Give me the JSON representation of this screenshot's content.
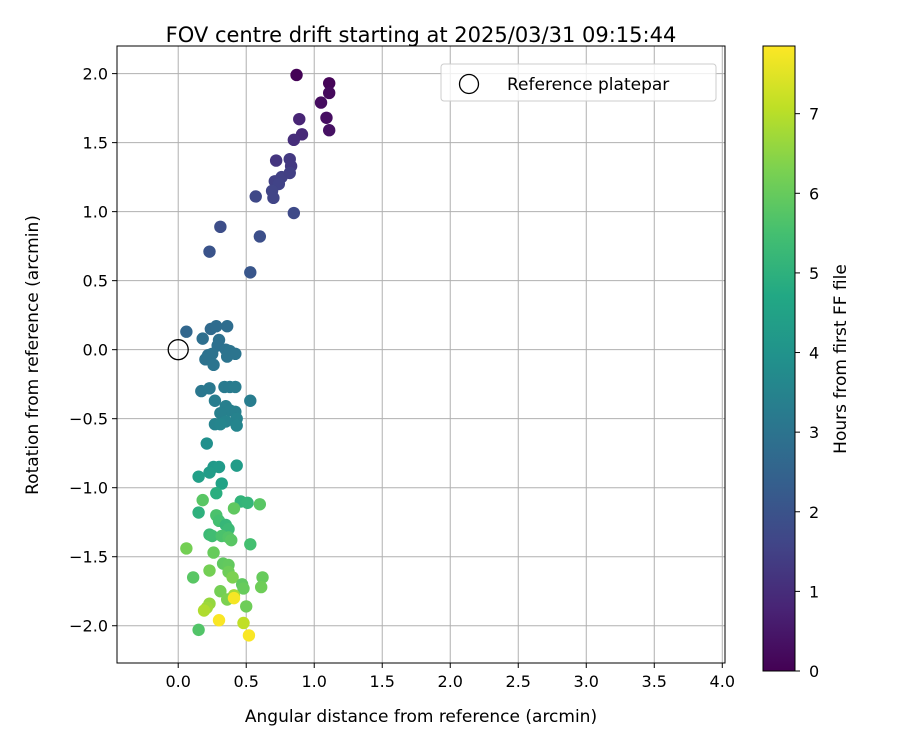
{
  "chart_data": {
    "type": "scatter",
    "title": "FOV centre drift starting at 2025/03/31 09:15:44",
    "xlabel": "Angular distance from reference (arcmin)",
    "ylabel": "Rotation from reference (arcmin)",
    "xlim": [
      -0.45,
      4.02
    ],
    "ylim": [
      -2.27,
      2.2
    ],
    "x_ticks": [
      0.0,
      0.5,
      1.0,
      1.5,
      2.0,
      2.5,
      3.0,
      3.5,
      4.0
    ],
    "x_tick_labels": [
      "0.0",
      "0.5",
      "1.0",
      "1.5",
      "2.0",
      "2.5",
      "3.0",
      "3.5",
      "4.0"
    ],
    "y_ticks": [
      -2.0,
      -1.5,
      -1.0,
      -0.5,
      0.0,
      0.5,
      1.0,
      1.5,
      2.0
    ],
    "y_tick_labels": [
      "−2.0",
      "−1.5",
      "−1.0",
      "−0.5",
      "0.0",
      "0.5",
      "1.0",
      "1.5",
      "2.0"
    ],
    "grid": true,
    "legend": {
      "position": "top-right",
      "entries": [
        "Reference platepar"
      ]
    },
    "reference_point": {
      "name": "Reference platepar",
      "x": 0.0,
      "y": 0.0
    },
    "colorbar": {
      "label": "Hours from first FF file",
      "colormap": "viridis",
      "range": [
        0,
        7.85
      ],
      "ticks": [
        0,
        1,
        2,
        3,
        4,
        5,
        6,
        7
      ],
      "tick_labels": [
        "0",
        "1",
        "2",
        "3",
        "4",
        "5",
        "6",
        "7"
      ]
    },
    "series": [
      {
        "points": [
          {
            "x": 0.87,
            "y": 1.99,
            "c": 0.05
          },
          {
            "x": 1.11,
            "y": 1.93,
            "c": 0.1
          },
          {
            "x": 1.11,
            "y": 1.86,
            "c": 0.2
          },
          {
            "x": 1.05,
            "y": 1.79,
            "c": 0.25
          },
          {
            "x": 1.09,
            "y": 1.68,
            "c": 0.3
          },
          {
            "x": 1.11,
            "y": 1.59,
            "c": 0.35
          },
          {
            "x": 0.89,
            "y": 1.67,
            "c": 0.8
          },
          {
            "x": 0.91,
            "y": 1.56,
            "c": 0.9
          },
          {
            "x": 0.85,
            "y": 1.52,
            "c": 1.0
          },
          {
            "x": 0.72,
            "y": 1.37,
            "c": 1.2
          },
          {
            "x": 0.82,
            "y": 1.38,
            "c": 1.3
          },
          {
            "x": 0.83,
            "y": 1.33,
            "c": 1.3
          },
          {
            "x": 0.76,
            "y": 1.25,
            "c": 1.5
          },
          {
            "x": 0.71,
            "y": 1.22,
            "c": 1.5
          },
          {
            "x": 0.74,
            "y": 1.2,
            "c": 1.55
          },
          {
            "x": 0.82,
            "y": 1.28,
            "c": 1.45
          },
          {
            "x": 0.69,
            "y": 1.15,
            "c": 1.6
          },
          {
            "x": 0.7,
            "y": 1.1,
            "c": 1.6
          },
          {
            "x": 0.57,
            "y": 1.11,
            "c": 1.7
          },
          {
            "x": 0.85,
            "y": 0.99,
            "c": 1.75
          },
          {
            "x": 0.31,
            "y": 0.89,
            "c": 1.85
          },
          {
            "x": 0.6,
            "y": 0.82,
            "c": 1.9
          },
          {
            "x": 0.23,
            "y": 0.71,
            "c": 2.0
          },
          {
            "x": 0.53,
            "y": 0.56,
            "c": 2.1
          },
          {
            "x": 0.06,
            "y": 0.13,
            "c": 2.6
          },
          {
            "x": 0.24,
            "y": 0.15,
            "c": 2.7
          },
          {
            "x": 0.28,
            "y": 0.17,
            "c": 2.75
          },
          {
            "x": 0.36,
            "y": 0.17,
            "c": 2.8
          },
          {
            "x": 0.18,
            "y": 0.08,
            "c": 2.85
          },
          {
            "x": 0.3,
            "y": 0.07,
            "c": 2.9
          },
          {
            "x": 0.29,
            "y": 0.03,
            "c": 2.9
          },
          {
            "x": 0.35,
            "y": 0.0,
            "c": 2.95
          },
          {
            "x": 0.38,
            "y": -0.01,
            "c": 3.0
          },
          {
            "x": 0.42,
            "y": -0.03,
            "c": 3.0
          },
          {
            "x": 0.22,
            "y": -0.04,
            "c": 2.9
          },
          {
            "x": 0.25,
            "y": -0.03,
            "c": 2.95
          },
          {
            "x": 0.36,
            "y": -0.05,
            "c": 3.0
          },
          {
            "x": 0.2,
            "y": -0.07,
            "c": 2.95
          },
          {
            "x": 0.26,
            "y": -0.11,
            "c": 3.0
          },
          {
            "x": 0.17,
            "y": -0.3,
            "c": 3.1
          },
          {
            "x": 0.23,
            "y": -0.28,
            "c": 3.15
          },
          {
            "x": 0.34,
            "y": -0.27,
            "c": 3.2
          },
          {
            "x": 0.38,
            "y": -0.27,
            "c": 3.2
          },
          {
            "x": 0.42,
            "y": -0.27,
            "c": 3.25
          },
          {
            "x": 0.27,
            "y": -0.37,
            "c": 3.3
          },
          {
            "x": 0.53,
            "y": -0.37,
            "c": 3.3
          },
          {
            "x": 0.35,
            "y": -0.41,
            "c": 3.35
          },
          {
            "x": 0.38,
            "y": -0.44,
            "c": 3.4
          },
          {
            "x": 0.42,
            "y": -0.45,
            "c": 3.4
          },
          {
            "x": 0.31,
            "y": -0.46,
            "c": 3.4
          },
          {
            "x": 0.43,
            "y": -0.5,
            "c": 3.45
          },
          {
            "x": 0.35,
            "y": -0.52,
            "c": 3.5
          },
          {
            "x": 0.27,
            "y": -0.54,
            "c": 3.5
          },
          {
            "x": 0.31,
            "y": -0.54,
            "c": 3.55
          },
          {
            "x": 0.43,
            "y": -0.55,
            "c": 3.55
          },
          {
            "x": 0.21,
            "y": -0.68,
            "c": 3.9
          },
          {
            "x": 0.26,
            "y": -0.85,
            "c": 4.2
          },
          {
            "x": 0.3,
            "y": -0.85,
            "c": 4.25
          },
          {
            "x": 0.43,
            "y": -0.84,
            "c": 4.3
          },
          {
            "x": 0.23,
            "y": -0.89,
            "c": 4.3
          },
          {
            "x": 0.15,
            "y": -0.92,
            "c": 4.4
          },
          {
            "x": 0.32,
            "y": -0.97,
            "c": 4.5
          },
          {
            "x": 0.28,
            "y": -1.04,
            "c": 4.9
          },
          {
            "x": 0.18,
            "y": -1.09,
            "c": 5.8
          },
          {
            "x": 0.46,
            "y": -1.1,
            "c": 5.1
          },
          {
            "x": 0.51,
            "y": -1.11,
            "c": 5.15
          },
          {
            "x": 0.6,
            "y": -1.12,
            "c": 5.8
          },
          {
            "x": 0.41,
            "y": -1.15,
            "c": 5.9
          },
          {
            "x": 0.15,
            "y": -1.18,
            "c": 5.0
          },
          {
            "x": 0.28,
            "y": -1.2,
            "c": 5.6
          },
          {
            "x": 0.3,
            "y": -1.24,
            "c": 5.5
          },
          {
            "x": 0.35,
            "y": -1.27,
            "c": 5.2
          },
          {
            "x": 0.37,
            "y": -1.3,
            "c": 5.3
          },
          {
            "x": 0.23,
            "y": -1.34,
            "c": 5.3
          },
          {
            "x": 0.25,
            "y": -1.35,
            "c": 5.4
          },
          {
            "x": 0.32,
            "y": -1.35,
            "c": 5.6
          },
          {
            "x": 0.37,
            "y": -1.36,
            "c": 5.7
          },
          {
            "x": 0.39,
            "y": -1.38,
            "c": 5.8
          },
          {
            "x": 0.53,
            "y": -1.41,
            "c": 5.5
          },
          {
            "x": 0.06,
            "y": -1.44,
            "c": 6.2
          },
          {
            "x": 0.26,
            "y": -1.47,
            "c": 6.0
          },
          {
            "x": 0.33,
            "y": -1.55,
            "c": 5.9
          },
          {
            "x": 0.37,
            "y": -1.56,
            "c": 5.95
          },
          {
            "x": 0.23,
            "y": -1.6,
            "c": 6.2
          },
          {
            "x": 0.37,
            "y": -1.61,
            "c": 6.1
          },
          {
            "x": 0.4,
            "y": -1.65,
            "c": 6.3
          },
          {
            "x": 0.62,
            "y": -1.65,
            "c": 6.0
          },
          {
            "x": 0.11,
            "y": -1.65,
            "c": 5.8
          },
          {
            "x": 0.47,
            "y": -1.7,
            "c": 5.9
          },
          {
            "x": 0.48,
            "y": -1.73,
            "c": 6.0
          },
          {
            "x": 0.61,
            "y": -1.72,
            "c": 6.1
          },
          {
            "x": 0.31,
            "y": -1.75,
            "c": 6.2
          },
          {
            "x": 0.41,
            "y": -1.78,
            "c": 6.8
          },
          {
            "x": 0.36,
            "y": -1.81,
            "c": 6.3
          },
          {
            "x": 0.23,
            "y": -1.84,
            "c": 6.6
          },
          {
            "x": 0.5,
            "y": -1.86,
            "c": 6.1
          },
          {
            "x": 0.21,
            "y": -1.87,
            "c": 6.7
          },
          {
            "x": 0.19,
            "y": -1.89,
            "c": 6.9
          },
          {
            "x": 0.41,
            "y": -1.8,
            "c": 7.75
          },
          {
            "x": 0.3,
            "y": -1.96,
            "c": 7.8
          },
          {
            "x": 0.48,
            "y": -1.98,
            "c": 7.1
          },
          {
            "x": 0.15,
            "y": -2.03,
            "c": 5.7
          },
          {
            "x": 0.52,
            "y": -2.07,
            "c": 7.8
          }
        ]
      }
    ]
  }
}
